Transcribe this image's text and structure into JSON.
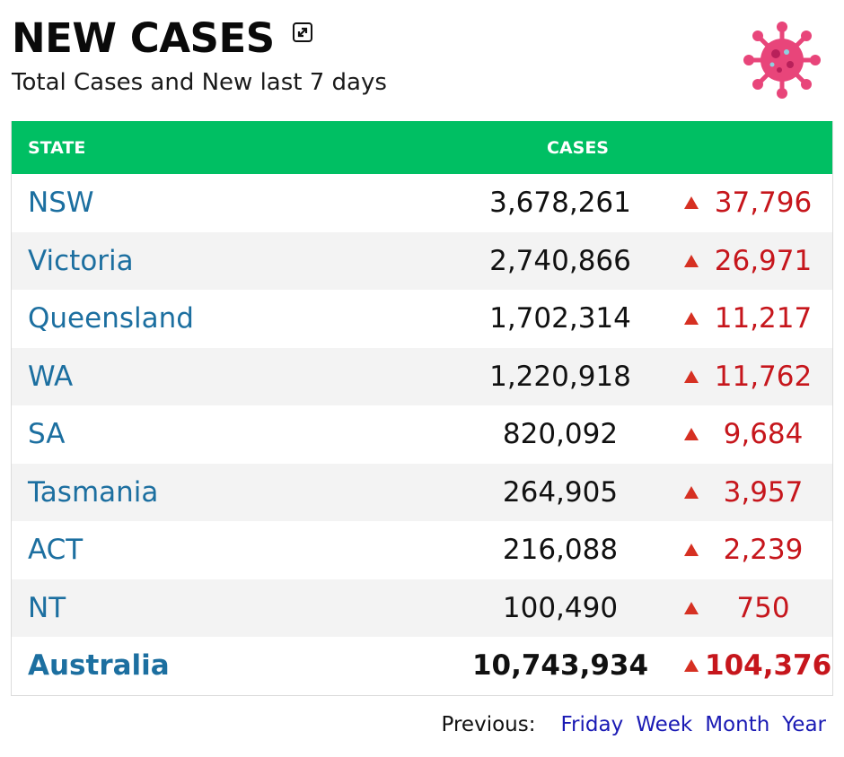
{
  "header": {
    "title": "NEW CASES",
    "subtitle": "Total Cases and New last 7 days",
    "expand_icon": "expand-icon",
    "virus_icon": "virus-icon"
  },
  "table": {
    "columns": {
      "state": "STATE",
      "cases": "CASES"
    },
    "rows": [
      {
        "state": "NSW",
        "cases": "3,678,261",
        "new": "37,796"
      },
      {
        "state": "Victoria",
        "cases": "2,740,866",
        "new": "26,971"
      },
      {
        "state": "Queensland",
        "cases": "1,702,314",
        "new": "11,217"
      },
      {
        "state": "WA",
        "cases": "1,220,918",
        "new": "11,762"
      },
      {
        "state": "SA",
        "cases": "820,092",
        "new": "9,684"
      },
      {
        "state": "Tasmania",
        "cases": "264,905",
        "new": "3,957"
      },
      {
        "state": "ACT",
        "cases": "216,088",
        "new": "2,239"
      },
      {
        "state": "NT",
        "cases": "100,490",
        "new": "750"
      }
    ],
    "total": {
      "state": "Australia",
      "cases": "10,743,934",
      "new": "104,376"
    }
  },
  "footer": {
    "label": "Previous:",
    "links": [
      "Friday",
      "Week",
      "Month",
      "Year"
    ]
  },
  "colors": {
    "header_bg": "#00bf63",
    "state_link": "#1c6fa0",
    "new_cases": "#c6161c",
    "arrow_up": "#d63022",
    "footer_link": "#1a1ab4",
    "virus": "#e8457a"
  }
}
